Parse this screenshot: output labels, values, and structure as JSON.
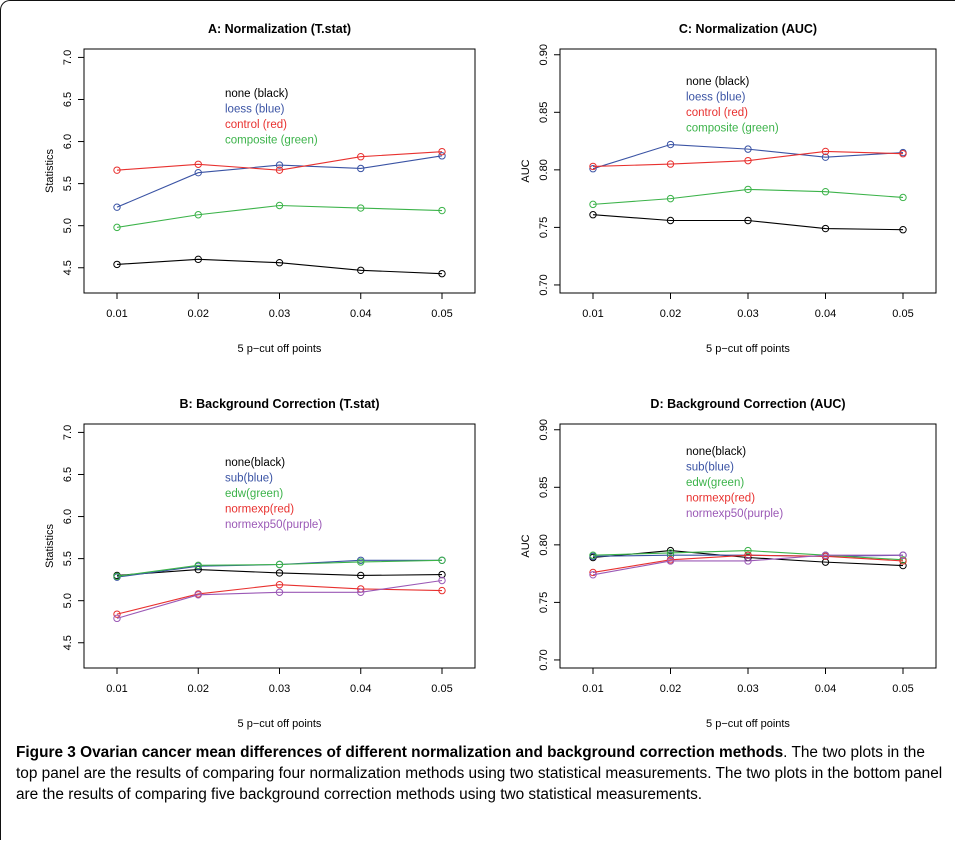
{
  "caption": {
    "label": "Figure 3",
    "title_part1": "Ovarian cancer mean differences of different normalization and background correction",
    "title_part2": "methods",
    "body": ". The two plots in the top panel are the results of comparing four normalization methods using two statistical measurements. The two plots in the bottom panel are the results of comparing five background correction methods using two statistical measurements."
  },
  "chart_data": [
    {
      "type": "line",
      "title": "A: Normalization (T.stat)",
      "xlabel": "5 p−cut off points",
      "ylabel": "Statistics",
      "x": [
        "0.01",
        "0.02",
        "0.03",
        "0.04",
        "0.05"
      ],
      "yticks": [
        "4.5",
        "5.0",
        "5.5",
        "6.0",
        "6.5",
        "7.0"
      ],
      "ylim": [
        4.2,
        7.1
      ],
      "series": [
        {
          "name": "none (black)",
          "color": "#000000",
          "values": [
            4.54,
            4.6,
            4.56,
            4.47,
            4.43
          ]
        },
        {
          "name": "loess (blue)",
          "color": "#3a53a4",
          "values": [
            5.22,
            5.63,
            5.72,
            5.68,
            5.83
          ]
        },
        {
          "name": "control (red)",
          "color": "#e8312f",
          "values": [
            5.66,
            5.73,
            5.66,
            5.82,
            5.88
          ]
        },
        {
          "name": "composite (green)",
          "color": "#3cb34a",
          "values": [
            4.98,
            5.13,
            5.24,
            5.21,
            5.18
          ]
        }
      ]
    },
    {
      "type": "line",
      "title": "C: Normalization (AUC)",
      "xlabel": "5 p−cut off points",
      "ylabel": "AUC",
      "x": [
        "0.01",
        "0.02",
        "0.03",
        "0.04",
        "0.05"
      ],
      "yticks": [
        "0.70",
        "0.75",
        "0.80",
        "0.85",
        "0.90"
      ],
      "ylim": [
        0.693,
        0.905
      ],
      "series": [
        {
          "name": "none (black)",
          "color": "#000000",
          "values": [
            0.761,
            0.756,
            0.756,
            0.749,
            0.748
          ]
        },
        {
          "name": "loess (blue)",
          "color": "#3a53a4",
          "values": [
            0.801,
            0.822,
            0.818,
            0.811,
            0.815
          ]
        },
        {
          "name": "control (red)",
          "color": "#e8312f",
          "values": [
            0.803,
            0.805,
            0.808,
            0.816,
            0.814
          ]
        },
        {
          "name": "composite (green)",
          "color": "#3cb34a",
          "values": [
            0.77,
            0.775,
            0.783,
            0.781,
            0.776
          ]
        }
      ]
    },
    {
      "type": "line",
      "title": "B: Background Correction (T.stat)",
      "xlabel": "5 p−cut off points",
      "ylabel": "Statistics",
      "x": [
        "0.01",
        "0.02",
        "0.03",
        "0.04",
        "0.05"
      ],
      "yticks": [
        "4.5",
        "5.0",
        "5.5",
        "6.0",
        "6.5",
        "7.0"
      ],
      "ylim": [
        4.2,
        7.1
      ],
      "series": [
        {
          "name": "none(black)",
          "color": "#000000",
          "values": [
            5.3,
            5.37,
            5.33,
            5.3,
            5.31
          ]
        },
        {
          "name": "sub(blue)",
          "color": "#3a53a4",
          "values": [
            5.28,
            5.41,
            5.43,
            5.48,
            5.48
          ]
        },
        {
          "name": "edw(green)",
          "color": "#3cb34a",
          "values": [
            5.29,
            5.42,
            5.43,
            5.46,
            5.48
          ]
        },
        {
          "name": "normexp(red)",
          "color": "#e8312f",
          "values": [
            4.84,
            5.08,
            5.19,
            5.14,
            5.12
          ]
        },
        {
          "name": "normexp50(purple)",
          "color": "#9b59b6",
          "values": [
            4.79,
            5.07,
            5.1,
            5.1,
            5.24
          ]
        }
      ]
    },
    {
      "type": "line",
      "title": "D: Background Correction (AUC)",
      "xlabel": "5 p−cut off points",
      "ylabel": "AUC",
      "x": [
        "0.01",
        "0.02",
        "0.03",
        "0.04",
        "0.05"
      ],
      "yticks": [
        "0.70",
        "0.75",
        "0.80",
        "0.85",
        "0.90"
      ],
      "ylim": [
        0.693,
        0.905
      ],
      "series": [
        {
          "name": "none(black)",
          "color": "#000000",
          "values": [
            0.789,
            0.795,
            0.789,
            0.785,
            0.782
          ]
        },
        {
          "name": "sub(blue)",
          "color": "#3a53a4",
          "values": [
            0.79,
            0.791,
            0.791,
            0.79,
            0.791
          ]
        },
        {
          "name": "edw(green)",
          "color": "#3cb34a",
          "values": [
            0.791,
            0.793,
            0.795,
            0.791,
            0.787
          ]
        },
        {
          "name": "normexp(red)",
          "color": "#e8312f",
          "values": [
            0.776,
            0.787,
            0.791,
            0.79,
            0.786
          ]
        },
        {
          "name": "normexp50(purple)",
          "color": "#9b59b6",
          "values": [
            0.774,
            0.786,
            0.786,
            0.791,
            0.791
          ]
        }
      ]
    }
  ]
}
